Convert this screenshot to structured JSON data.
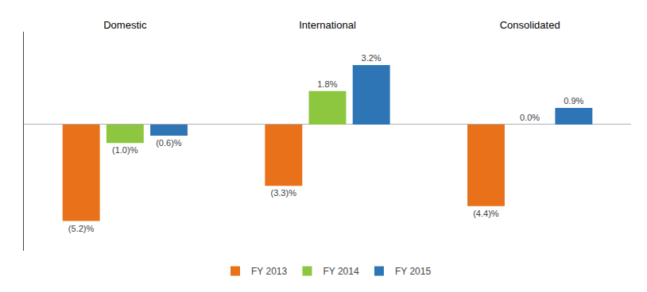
{
  "chart_data": {
    "type": "bar",
    "categories": [
      "Domestic",
      "International",
      "Consolidated"
    ],
    "series": [
      {
        "name": "FY 2013",
        "color": "#E8711A",
        "values": [
          -5.2,
          -3.3,
          -4.4
        ],
        "value_labels": [
          "(5.2)%",
          "(3.3)%",
          "(4.4)%"
        ]
      },
      {
        "name": "FY 2014",
        "color": "#8DC63F",
        "values": [
          -1.0,
          1.8,
          0.0
        ],
        "value_labels": [
          "(1.0)%",
          "1.8%",
          "0.0%"
        ]
      },
      {
        "name": "FY 2015",
        "color": "#2E75B6",
        "values": [
          -0.6,
          3.2,
          0.9
        ],
        "value_labels": [
          "(0.6)%",
          "3.2%",
          "0.9%"
        ]
      }
    ],
    "ylim": [
      -6.8,
      5.0
    ],
    "grid": false,
    "legend": "bottom",
    "data_labels": true,
    "tick_labels": "x"
  }
}
